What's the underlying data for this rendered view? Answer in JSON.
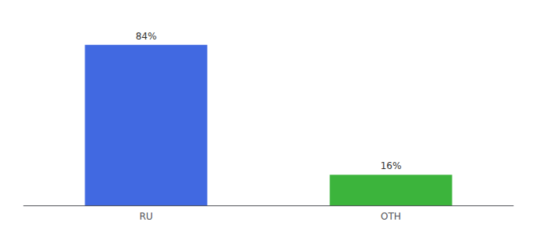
{
  "chart_data": {
    "type": "bar",
    "categories": [
      "RU",
      "OTH"
    ],
    "values": [
      84,
      16
    ],
    "value_labels": [
      "84%",
      "16%"
    ],
    "colors": [
      "#4169E1",
      "#3CB43C"
    ],
    "ylim": [
      0,
      95
    ],
    "data_labels": true,
    "tick_labels": "x",
    "grid": false
  }
}
